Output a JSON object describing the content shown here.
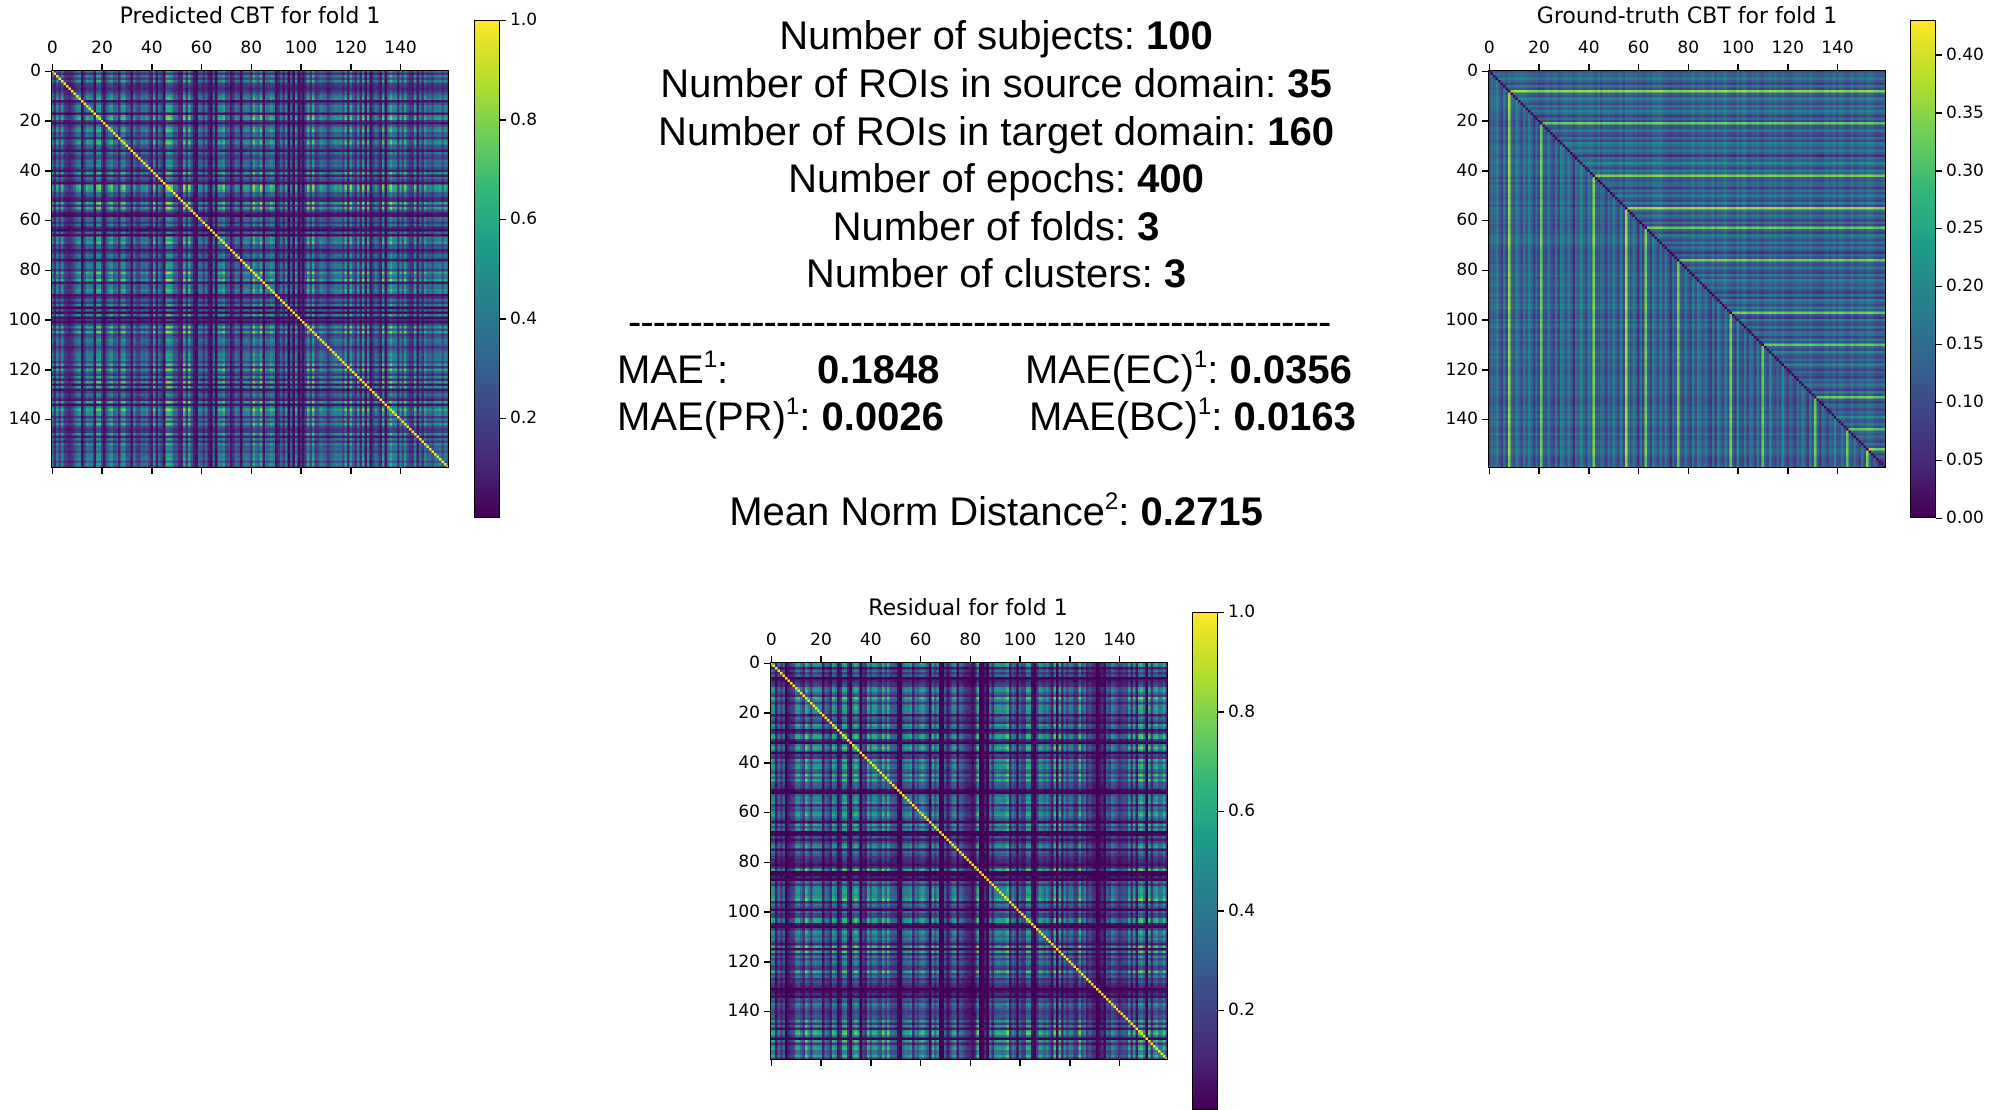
{
  "chart_data": [
    {
      "type": "heatmap",
      "title": "Predicted CBT for fold 1",
      "matrix_size": 160,
      "x_ticks": [
        "0",
        "20",
        "40",
        "60",
        "80",
        "100",
        "120",
        "140"
      ],
      "y_ticks": [
        "0",
        "20",
        "40",
        "60",
        "80",
        "100",
        "120",
        "140"
      ],
      "colorbar_ticks": [
        "1.0",
        "0.8",
        "0.6",
        "0.4",
        "0.2"
      ],
      "colorbar_range": [
        0.0,
        1.0
      ],
      "colormap": "viridis",
      "diagonal_value": 1.0
    },
    {
      "type": "heatmap",
      "title": "Ground-truth CBT for fold 1",
      "matrix_size": 160,
      "x_ticks": [
        "0",
        "20",
        "40",
        "60",
        "80",
        "100",
        "120",
        "140"
      ],
      "y_ticks": [
        "0",
        "20",
        "40",
        "60",
        "80",
        "100",
        "120",
        "140"
      ],
      "colorbar_ticks": [
        "0.40",
        "0.35",
        "0.30",
        "0.25",
        "0.20",
        "0.15",
        "0.10",
        "0.05",
        "0.00"
      ],
      "colorbar_range": [
        0.0,
        0.43
      ],
      "colormap": "viridis",
      "diagonal_value": 0.0
    },
    {
      "type": "heatmap",
      "title": "Residual for fold 1",
      "matrix_size": 160,
      "x_ticks": [
        "0",
        "20",
        "40",
        "60",
        "80",
        "100",
        "120",
        "140"
      ],
      "y_ticks": [
        "0",
        "20",
        "40",
        "60",
        "80",
        "100",
        "120",
        "140"
      ],
      "colorbar_ticks": [
        "1.0",
        "0.8",
        "0.6",
        "0.4",
        "0.2"
      ],
      "colorbar_range": [
        0.0,
        1.0
      ],
      "colormap": "viridis",
      "diagonal_value": 1.0
    }
  ],
  "stats": {
    "subjects_label": "Number of subjects: ",
    "subjects_value": "100",
    "src_label": "Number of ROIs in source domain: ",
    "src_value": "35",
    "tgt_label": "Number of ROIs in target domain: ",
    "tgt_value": "160",
    "epochs_label": "Number of epochs: ",
    "epochs_value": "400",
    "folds_label": "Number of folds: ",
    "folds_value": "3",
    "clusters_label": "Number of clusters: ",
    "clusters_value": "3",
    "separator": "---------------------------------------------------------",
    "mae_label": "MAE",
    "mae_sup": "1",
    "mae_colon": ":",
    "mae_value": "0.1848",
    "mae_ec_label": "MAE(EC)",
    "mae_ec_sup": "1",
    "mae_ec_colon": ": ",
    "mae_ec_value": "0.0356",
    "mae_pr_label": "MAE(PR)",
    "mae_pr_sup": "1",
    "mae_pr_colon": ": ",
    "mae_pr_value": "0.0026",
    "mae_bc_label": "MAE(BC)",
    "mae_bc_sup": "1",
    "mae_bc_colon": ": ",
    "mae_bc_value": "0.0163",
    "mnd_label": "Mean Norm Distance",
    "mnd_sup": "2",
    "mnd_colon": ": ",
    "mnd_value": "0.2715"
  }
}
